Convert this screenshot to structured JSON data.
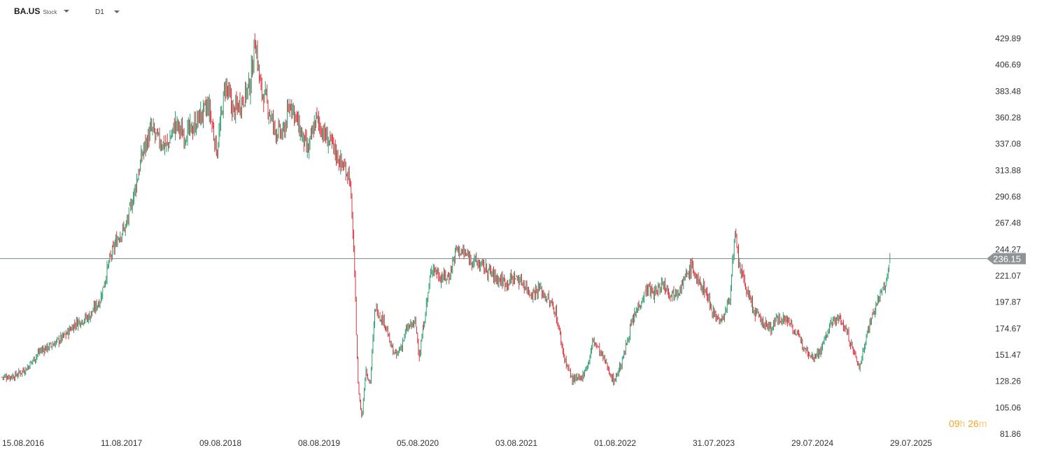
{
  "header": {
    "symbol": "BA.US",
    "symbol_type": "Stock",
    "interval": "D1"
  },
  "timer": {
    "hours": "09",
    "hours_unit": "h",
    "minutes": "26",
    "minutes_unit": "m"
  },
  "colors": {
    "up": "#2e9e6e",
    "down": "#e0323c",
    "price_line": "#7f8c8d",
    "price_label_bg": "#8e9396",
    "axis_text": "#333333",
    "timer": "#f5a623"
  },
  "chart_data": {
    "type": "line",
    "title": "",
    "style": "candlestick (daily)",
    "xlabel": "",
    "ylabel": "",
    "ylim": [
      81.86,
      445
    ],
    "y_ticks": [
      429.89,
      406.69,
      383.48,
      360.28,
      337.08,
      313.88,
      290.68,
      267.48,
      244.27,
      221.07,
      197.87,
      174.67,
      151.47,
      128.26,
      105.06,
      81.86
    ],
    "y_tick_labels": [
      "429.89",
      "406.69",
      "383.48",
      "360.28",
      "337.08",
      "313.88",
      "290.68",
      "267.48",
      "244.27",
      "221.07",
      "197.87",
      "174.67",
      "151.47",
      "128.26",
      "105.06",
      "81.86"
    ],
    "x_ticks": [
      "15.08.2016",
      "11.08.2017",
      "09.08.2018",
      "08.08.2019",
      "05.08.2020",
      "03.08.2021",
      "01.08.2022",
      "31.07.2023",
      "29.07.2024",
      "29.07.2025"
    ],
    "current_price": 236.15,
    "current_price_label": "236.15",
    "grid": false,
    "series": [
      {
        "x": [
          "2016-08-15",
          "2016-10-01",
          "2016-11-15",
          "2017-01-01",
          "2017-02-15",
          "2017-04-01",
          "2017-05-15",
          "2017-07-01",
          "2017-08-11",
          "2017-09-15",
          "2017-10-15",
          "2017-11-15",
          "2017-12-15",
          "2018-01-15",
          "2018-02-15",
          "2018-03-15",
          "2018-04-15",
          "2018-05-15",
          "2018-06-15",
          "2018-07-15",
          "2018-08-09",
          "2018-09-15",
          "2018-10-15",
          "2018-11-15",
          "2018-12-15",
          "2019-01-15",
          "2019-02-15",
          "2019-03-05",
          "2019-03-25",
          "2019-04-15",
          "2019-05-15",
          "2019-06-15",
          "2019-07-15",
          "2019-08-08",
          "2019-09-15",
          "2019-10-15",
          "2019-11-15",
          "2019-12-15",
          "2020-01-15",
          "2020-02-15",
          "2020-03-01",
          "2020-03-18",
          "2020-04-01",
          "2020-04-15",
          "2020-05-01",
          "2020-05-20",
          "2020-06-08",
          "2020-06-25",
          "2020-07-15",
          "2020-08-05",
          "2020-08-25",
          "2020-09-15",
          "2020-10-15",
          "2020-10-30",
          "2020-11-15",
          "2020-12-15",
          "2021-01-15",
          "2021-02-15",
          "2021-03-15",
          "2021-04-15",
          "2021-05-15",
          "2021-06-15",
          "2021-07-15",
          "2021-08-03",
          "2021-09-15",
          "2021-10-15",
          "2021-11-15",
          "2021-12-15",
          "2022-01-15",
          "2022-02-15",
          "2022-03-15",
          "2022-04-15",
          "2022-05-15",
          "2022-06-15",
          "2022-07-15",
          "2022-08-01",
          "2022-09-15",
          "2022-10-15",
          "2022-11-15",
          "2022-12-15",
          "2023-01-15",
          "2023-02-15",
          "2023-03-15",
          "2023-04-15",
          "2023-05-15",
          "2023-06-15",
          "2023-07-31",
          "2023-08-20",
          "2023-09-15",
          "2023-10-15",
          "2023-11-15",
          "2023-12-15",
          "2024-01-05",
          "2024-01-25",
          "2024-02-15",
          "2024-03-15",
          "2024-04-15",
          "2024-05-15",
          "2024-06-15",
          "2024-07-29",
          "2024-08-15",
          "2024-09-15",
          "2024-10-15",
          "2024-11-15",
          "2024-12-15",
          "2025-01-15",
          "2025-02-15",
          "2025-03-15",
          "2025-04-08",
          "2025-04-25",
          "2025-05-15",
          "2025-06-15",
          "2025-07-15",
          "2025-07-29"
        ],
        "values": [
          132,
          133,
          140,
          155,
          160,
          168,
          180,
          185,
          200,
          235,
          255,
          265,
          295,
          330,
          350,
          340,
          335,
          355,
          345,
          350,
          360,
          370,
          330,
          390,
          365,
          375,
          390,
          430,
          385,
          375,
          350,
          345,
          375,
          355,
          330,
          360,
          345,
          335,
          320,
          310,
          250,
          125,
          95,
          140,
          125,
          195,
          185,
          180,
          160,
          150,
          160,
          175,
          180,
          150,
          180,
          230,
          220,
          220,
          245,
          240,
          235,
          230,
          225,
          220,
          215,
          220,
          215,
          205,
          210,
          200,
          190,
          150,
          130,
          130,
          145,
          165,
          145,
          128,
          145,
          175,
          195,
          210,
          205,
          215,
          205,
          210,
          230,
          215,
          210,
          190,
          180,
          200,
          255,
          225,
          210,
          190,
          180,
          175,
          185,
          180,
          170,
          160,
          150,
          155,
          175,
          185,
          175,
          155,
          140,
          160,
          180,
          200,
          215,
          236.15
        ]
      }
    ]
  }
}
